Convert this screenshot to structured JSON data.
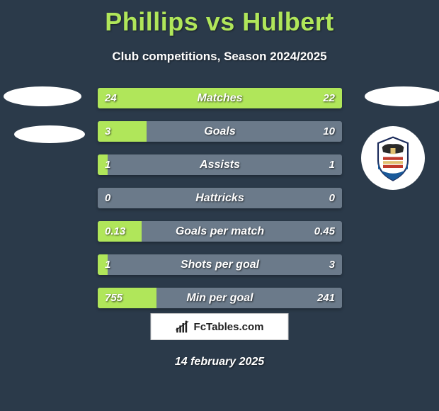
{
  "title": "Phillips vs Hulbert",
  "subtitle": "Club competitions, Season 2024/2025",
  "date": "14 february 2025",
  "footer_brand": "FcTables.com",
  "colors": {
    "bg": "#2b3a4a",
    "accent": "#b0e65a",
    "bar_neutral": "#6b7a8a",
    "text": "#ffffff"
  },
  "stats": [
    {
      "label": "Matches",
      "left_val": "24",
      "right_val": "22",
      "left_pct": 52,
      "right_pct": 48
    },
    {
      "label": "Goals",
      "left_val": "3",
      "right_val": "10",
      "left_pct": 20,
      "right_pct": 0
    },
    {
      "label": "Assists",
      "left_val": "1",
      "right_val": "1",
      "left_pct": 4,
      "right_pct": 0
    },
    {
      "label": "Hattricks",
      "left_val": "0",
      "right_val": "0",
      "left_pct": 0,
      "right_pct": 0
    },
    {
      "label": "Goals per match",
      "left_val": "0.13",
      "right_val": "0.45",
      "left_pct": 18,
      "right_pct": 0
    },
    {
      "label": "Shots per goal",
      "left_val": "1",
      "right_val": "3",
      "left_pct": 4,
      "right_pct": 0
    },
    {
      "label": "Min per goal",
      "left_val": "755",
      "right_val": "241",
      "left_pct": 24,
      "right_pct": 0
    }
  ]
}
